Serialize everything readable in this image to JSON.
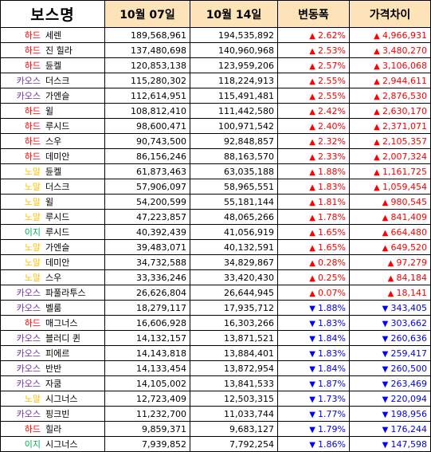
{
  "header": {
    "boss": "보스명",
    "date1": "10월 07일",
    "date2": "10월 14일",
    "change": "변동폭",
    "gap": "가격차이"
  },
  "difficulty_colors": {
    "하드": "#ff0000",
    "카오스": "#7030a0",
    "노말": "#ffc000",
    "이지": "#00b050"
  },
  "direction_colors": {
    "up": "#ff0000",
    "down": "#0000ff"
  },
  "rows": [
    {
      "difficulty": "하드",
      "boss": "세렌",
      "price1": "189,568,961",
      "price2": "194,535,892",
      "direction": "up",
      "pct": "2.62%",
      "gap": "4,966,931"
    },
    {
      "difficulty": "하드",
      "boss": "진 힐라",
      "price1": "137,480,698",
      "price2": "140,960,968",
      "direction": "up",
      "pct": "2.53%",
      "gap": "3,480,270"
    },
    {
      "difficulty": "하드",
      "boss": "듄켈",
      "price1": "120,853,138",
      "price2": "123,959,206",
      "direction": "up",
      "pct": "2.57%",
      "gap": "3,106,068"
    },
    {
      "difficulty": "카오스",
      "boss": "더스크",
      "price1": "115,280,302",
      "price2": "118,224,913",
      "direction": "up",
      "pct": "2.55%",
      "gap": "2,944,611"
    },
    {
      "difficulty": "카오스",
      "boss": "가엔슬",
      "price1": "112,614,951",
      "price2": "115,491,481",
      "direction": "up",
      "pct": "2.55%",
      "gap": "2,876,530"
    },
    {
      "difficulty": "하드",
      "boss": "윌",
      "price1": "108,812,410",
      "price2": "111,442,580",
      "direction": "up",
      "pct": "2.42%",
      "gap": "2,630,170"
    },
    {
      "difficulty": "하드",
      "boss": "루시드",
      "price1": "98,600,471",
      "price2": "100,971,542",
      "direction": "up",
      "pct": "2.40%",
      "gap": "2,371,071"
    },
    {
      "difficulty": "하드",
      "boss": "스우",
      "price1": "90,743,500",
      "price2": "92,848,857",
      "direction": "up",
      "pct": "2.32%",
      "gap": "2,105,357"
    },
    {
      "difficulty": "하드",
      "boss": "데미안",
      "price1": "86,156,246",
      "price2": "88,163,570",
      "direction": "up",
      "pct": "2.33%",
      "gap": "2,007,324"
    },
    {
      "difficulty": "노말",
      "boss": "듄켈",
      "price1": "61,873,463",
      "price2": "63,035,188",
      "direction": "up",
      "pct": "1.88%",
      "gap": "1,161,725"
    },
    {
      "difficulty": "노말",
      "boss": "더스크",
      "price1": "57,906,097",
      "price2": "58,965,551",
      "direction": "up",
      "pct": "1.83%",
      "gap": "1,059,454"
    },
    {
      "difficulty": "노말",
      "boss": "윌",
      "price1": "54,200,599",
      "price2": "55,181,144",
      "direction": "up",
      "pct": "1.81%",
      "gap": "980,545"
    },
    {
      "difficulty": "노말",
      "boss": "루시드",
      "price1": "47,223,857",
      "price2": "48,065,266",
      "direction": "up",
      "pct": "1.78%",
      "gap": "841,409"
    },
    {
      "difficulty": "이지",
      "boss": "루시드",
      "price1": "40,392,439",
      "price2": "41,056,919",
      "direction": "up",
      "pct": "1.65%",
      "gap": "664,480"
    },
    {
      "difficulty": "노말",
      "boss": "가엔슬",
      "price1": "39,483,071",
      "price2": "40,132,591",
      "direction": "up",
      "pct": "1.65%",
      "gap": "649,520"
    },
    {
      "difficulty": "노말",
      "boss": "데미안",
      "price1": "34,732,588",
      "price2": "34,829,867",
      "direction": "up",
      "pct": "0.28%",
      "gap": "97,279"
    },
    {
      "difficulty": "노말",
      "boss": "스우",
      "price1": "33,336,246",
      "price2": "33,420,430",
      "direction": "up",
      "pct": "0.25%",
      "gap": "84,184"
    },
    {
      "difficulty": "카오스",
      "boss": "파풀라투스",
      "price1": "26,626,804",
      "price2": "26,644,945",
      "direction": "up",
      "pct": "0.07%",
      "gap": "18,141"
    },
    {
      "difficulty": "카오스",
      "boss": "벨룸",
      "price1": "18,279,117",
      "price2": "17,935,712",
      "direction": "down",
      "pct": "1.88%",
      "gap": "343,405"
    },
    {
      "difficulty": "하드",
      "boss": "매그너스",
      "price1": "16,606,928",
      "price2": "16,303,266",
      "direction": "down",
      "pct": "1.83%",
      "gap": "303,662"
    },
    {
      "difficulty": "카오스",
      "boss": "블러디 퀸",
      "price1": "14,132,157",
      "price2": "13,871,521",
      "direction": "down",
      "pct": "1.84%",
      "gap": "260,636"
    },
    {
      "difficulty": "카오스",
      "boss": "피에르",
      "price1": "14,143,818",
      "price2": "13,884,401",
      "direction": "down",
      "pct": "1.83%",
      "gap": "259,417"
    },
    {
      "difficulty": "카오스",
      "boss": "반반",
      "price1": "14,133,454",
      "price2": "13,872,954",
      "direction": "down",
      "pct": "1.84%",
      "gap": "260,500"
    },
    {
      "difficulty": "카오스",
      "boss": "자쿰",
      "price1": "14,105,002",
      "price2": "13,841,533",
      "direction": "down",
      "pct": "1.87%",
      "gap": "263,469"
    },
    {
      "difficulty": "노말",
      "boss": "시그너스",
      "price1": "12,723,409",
      "price2": "12,503,315",
      "direction": "down",
      "pct": "1.73%",
      "gap": "220,094"
    },
    {
      "difficulty": "카오스",
      "boss": "핑크빈",
      "price1": "11,232,700",
      "price2": "11,033,744",
      "direction": "down",
      "pct": "1.77%",
      "gap": "198,956"
    },
    {
      "difficulty": "하드",
      "boss": "힐라",
      "price1": "9,859,371",
      "price2": "9,683,127",
      "direction": "down",
      "pct": "1.79%",
      "gap": "176,244"
    },
    {
      "difficulty": "이지",
      "boss": "시그너스",
      "price1": "7,939,852",
      "price2": "7,792,254",
      "direction": "down",
      "pct": "1.86%",
      "gap": "147,598"
    }
  ]
}
